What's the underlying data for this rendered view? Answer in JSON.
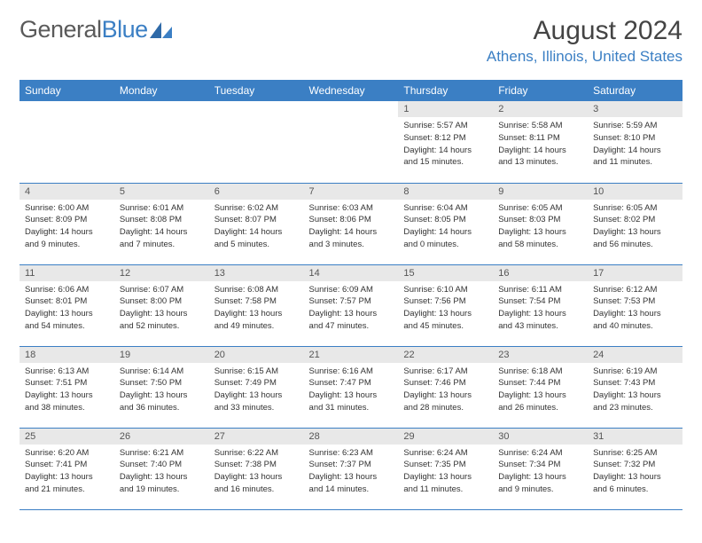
{
  "brand": {
    "part1": "General",
    "part2": "Blue"
  },
  "title": "August 2024",
  "location": "Athens, Illinois, United States",
  "colors": {
    "header_bg": "#3b7fc4",
    "header_text": "#ffffff",
    "daynum_bg": "#e8e8e8",
    "border": "#3b7fc4",
    "body_bg": "#ffffff",
    "text": "#333333"
  },
  "weekdays": [
    "Sunday",
    "Monday",
    "Tuesday",
    "Wednesday",
    "Thursday",
    "Friday",
    "Saturday"
  ],
  "weeks": [
    [
      {
        "n": "",
        "sr": "",
        "ss": "",
        "dl": ""
      },
      {
        "n": "",
        "sr": "",
        "ss": "",
        "dl": ""
      },
      {
        "n": "",
        "sr": "",
        "ss": "",
        "dl": ""
      },
      {
        "n": "",
        "sr": "",
        "ss": "",
        "dl": ""
      },
      {
        "n": "1",
        "sr": "Sunrise: 5:57 AM",
        "ss": "Sunset: 8:12 PM",
        "dl": "Daylight: 14 hours and 15 minutes."
      },
      {
        "n": "2",
        "sr": "Sunrise: 5:58 AM",
        "ss": "Sunset: 8:11 PM",
        "dl": "Daylight: 14 hours and 13 minutes."
      },
      {
        "n": "3",
        "sr": "Sunrise: 5:59 AM",
        "ss": "Sunset: 8:10 PM",
        "dl": "Daylight: 14 hours and 11 minutes."
      }
    ],
    [
      {
        "n": "4",
        "sr": "Sunrise: 6:00 AM",
        "ss": "Sunset: 8:09 PM",
        "dl": "Daylight: 14 hours and 9 minutes."
      },
      {
        "n": "5",
        "sr": "Sunrise: 6:01 AM",
        "ss": "Sunset: 8:08 PM",
        "dl": "Daylight: 14 hours and 7 minutes."
      },
      {
        "n": "6",
        "sr": "Sunrise: 6:02 AM",
        "ss": "Sunset: 8:07 PM",
        "dl": "Daylight: 14 hours and 5 minutes."
      },
      {
        "n": "7",
        "sr": "Sunrise: 6:03 AM",
        "ss": "Sunset: 8:06 PM",
        "dl": "Daylight: 14 hours and 3 minutes."
      },
      {
        "n": "8",
        "sr": "Sunrise: 6:04 AM",
        "ss": "Sunset: 8:05 PM",
        "dl": "Daylight: 14 hours and 0 minutes."
      },
      {
        "n": "9",
        "sr": "Sunrise: 6:05 AM",
        "ss": "Sunset: 8:03 PM",
        "dl": "Daylight: 13 hours and 58 minutes."
      },
      {
        "n": "10",
        "sr": "Sunrise: 6:05 AM",
        "ss": "Sunset: 8:02 PM",
        "dl": "Daylight: 13 hours and 56 minutes."
      }
    ],
    [
      {
        "n": "11",
        "sr": "Sunrise: 6:06 AM",
        "ss": "Sunset: 8:01 PM",
        "dl": "Daylight: 13 hours and 54 minutes."
      },
      {
        "n": "12",
        "sr": "Sunrise: 6:07 AM",
        "ss": "Sunset: 8:00 PM",
        "dl": "Daylight: 13 hours and 52 minutes."
      },
      {
        "n": "13",
        "sr": "Sunrise: 6:08 AM",
        "ss": "Sunset: 7:58 PM",
        "dl": "Daylight: 13 hours and 49 minutes."
      },
      {
        "n": "14",
        "sr": "Sunrise: 6:09 AM",
        "ss": "Sunset: 7:57 PM",
        "dl": "Daylight: 13 hours and 47 minutes."
      },
      {
        "n": "15",
        "sr": "Sunrise: 6:10 AM",
        "ss": "Sunset: 7:56 PM",
        "dl": "Daylight: 13 hours and 45 minutes."
      },
      {
        "n": "16",
        "sr": "Sunrise: 6:11 AM",
        "ss": "Sunset: 7:54 PM",
        "dl": "Daylight: 13 hours and 43 minutes."
      },
      {
        "n": "17",
        "sr": "Sunrise: 6:12 AM",
        "ss": "Sunset: 7:53 PM",
        "dl": "Daylight: 13 hours and 40 minutes."
      }
    ],
    [
      {
        "n": "18",
        "sr": "Sunrise: 6:13 AM",
        "ss": "Sunset: 7:51 PM",
        "dl": "Daylight: 13 hours and 38 minutes."
      },
      {
        "n": "19",
        "sr": "Sunrise: 6:14 AM",
        "ss": "Sunset: 7:50 PM",
        "dl": "Daylight: 13 hours and 36 minutes."
      },
      {
        "n": "20",
        "sr": "Sunrise: 6:15 AM",
        "ss": "Sunset: 7:49 PM",
        "dl": "Daylight: 13 hours and 33 minutes."
      },
      {
        "n": "21",
        "sr": "Sunrise: 6:16 AM",
        "ss": "Sunset: 7:47 PM",
        "dl": "Daylight: 13 hours and 31 minutes."
      },
      {
        "n": "22",
        "sr": "Sunrise: 6:17 AM",
        "ss": "Sunset: 7:46 PM",
        "dl": "Daylight: 13 hours and 28 minutes."
      },
      {
        "n": "23",
        "sr": "Sunrise: 6:18 AM",
        "ss": "Sunset: 7:44 PM",
        "dl": "Daylight: 13 hours and 26 minutes."
      },
      {
        "n": "24",
        "sr": "Sunrise: 6:19 AM",
        "ss": "Sunset: 7:43 PM",
        "dl": "Daylight: 13 hours and 23 minutes."
      }
    ],
    [
      {
        "n": "25",
        "sr": "Sunrise: 6:20 AM",
        "ss": "Sunset: 7:41 PM",
        "dl": "Daylight: 13 hours and 21 minutes."
      },
      {
        "n": "26",
        "sr": "Sunrise: 6:21 AM",
        "ss": "Sunset: 7:40 PM",
        "dl": "Daylight: 13 hours and 19 minutes."
      },
      {
        "n": "27",
        "sr": "Sunrise: 6:22 AM",
        "ss": "Sunset: 7:38 PM",
        "dl": "Daylight: 13 hours and 16 minutes."
      },
      {
        "n": "28",
        "sr": "Sunrise: 6:23 AM",
        "ss": "Sunset: 7:37 PM",
        "dl": "Daylight: 13 hours and 14 minutes."
      },
      {
        "n": "29",
        "sr": "Sunrise: 6:24 AM",
        "ss": "Sunset: 7:35 PM",
        "dl": "Daylight: 13 hours and 11 minutes."
      },
      {
        "n": "30",
        "sr": "Sunrise: 6:24 AM",
        "ss": "Sunset: 7:34 PM",
        "dl": "Daylight: 13 hours and 9 minutes."
      },
      {
        "n": "31",
        "sr": "Sunrise: 6:25 AM",
        "ss": "Sunset: 7:32 PM",
        "dl": "Daylight: 13 hours and 6 minutes."
      }
    ]
  ]
}
